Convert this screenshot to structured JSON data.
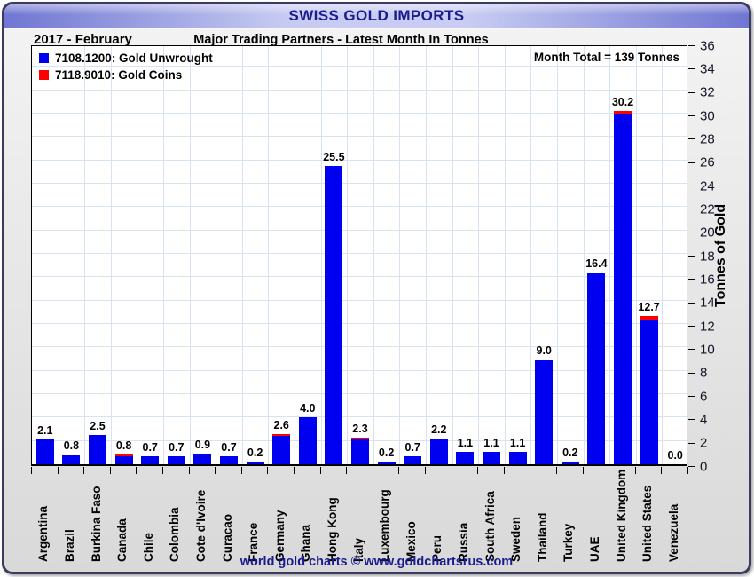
{
  "header": {
    "title": "SWISS GOLD IMPORTS"
  },
  "subheader": {
    "period": "2017 - February",
    "subtitle": "Major Trading Partners - Latest Month In Tonnes"
  },
  "annotation": {
    "month_total": "Month Total = 139 Tonnes"
  },
  "legend": [
    {
      "label": "7108.1200: Gold Unwrought",
      "color": "#0000F0"
    },
    {
      "label": "7118.9010: Gold Coins",
      "color": "#FF0000"
    }
  ],
  "footer": {
    "credit": "world gold charts © www.goldchartsrus.com"
  },
  "colors": {
    "unwrought": "#0000F0",
    "coins": "#FF0000",
    "grid": "#d8e3f1",
    "title_text": "#1b1b8f"
  },
  "chart_data": {
    "type": "bar",
    "stacked": true,
    "title": "SWISS GOLD IMPORTS",
    "subtitle": "Major Trading Partners - Latest Month In Tonnes",
    "period": "2017 - February",
    "ylabel": "Tonnes of Gold",
    "ylim": [
      0,
      36
    ],
    "ytick_step": 2,
    "grid": true,
    "legend_position": "top-left",
    "annotation": "Month Total = 139 Tonnes",
    "categories": [
      "Argentina",
      "Brazil",
      "Burkina Faso",
      "Canada",
      "Chile",
      "Colombia",
      "Cote d'Ivoire",
      "Curacao",
      "France",
      "Germany",
      "Ghana",
      "Hong Kong",
      "Italy",
      "Luxembourg",
      "Mexico",
      "Peru",
      "Russia",
      "South Africa",
      "Sweden",
      "Thailand",
      "Turkey",
      "UAE",
      "United Kingdom",
      "United States",
      "Venezuela"
    ],
    "totals": [
      2.1,
      0.8,
      2.5,
      0.8,
      0.7,
      0.7,
      0.9,
      0.7,
      0.2,
      2.6,
      4.0,
      25.5,
      2.3,
      0.2,
      0.7,
      2.2,
      1.1,
      1.1,
      1.1,
      9.0,
      0.2,
      16.4,
      30.2,
      12.7,
      0.0
    ],
    "bar_labels": [
      "2.1",
      "0.8",
      "2.5",
      "0.8",
      "0.7",
      "0.7",
      "0.9",
      "0.7",
      "0.2",
      "2.6",
      "4.0",
      "25.5",
      "2.3",
      "0.2",
      "0.7",
      "2.2",
      "1.1",
      "1.1",
      "1.1",
      "9.0",
      "0.2",
      "16.4",
      "30.2",
      "12.7",
      "0.0"
    ],
    "series": [
      {
        "name": "7108.1200: Gold Unwrought",
        "color": "#0000F0",
        "values": [
          2.1,
          0.8,
          2.5,
          0.65,
          0.7,
          0.7,
          0.9,
          0.7,
          0.2,
          2.4,
          4.0,
          25.5,
          2.1,
          0.2,
          0.7,
          2.2,
          1.1,
          1.1,
          1.1,
          9.0,
          0.2,
          16.4,
          30.0,
          12.4,
          0.0
        ]
      },
      {
        "name": "7118.9010: Gold Coins",
        "color": "#FF0000",
        "values": [
          0,
          0,
          0,
          0.15,
          0,
          0,
          0,
          0,
          0,
          0.2,
          0,
          0,
          0.2,
          0,
          0,
          0,
          0,
          0,
          0,
          0,
          0,
          0,
          0.2,
          0.3,
          0
        ]
      }
    ]
  }
}
